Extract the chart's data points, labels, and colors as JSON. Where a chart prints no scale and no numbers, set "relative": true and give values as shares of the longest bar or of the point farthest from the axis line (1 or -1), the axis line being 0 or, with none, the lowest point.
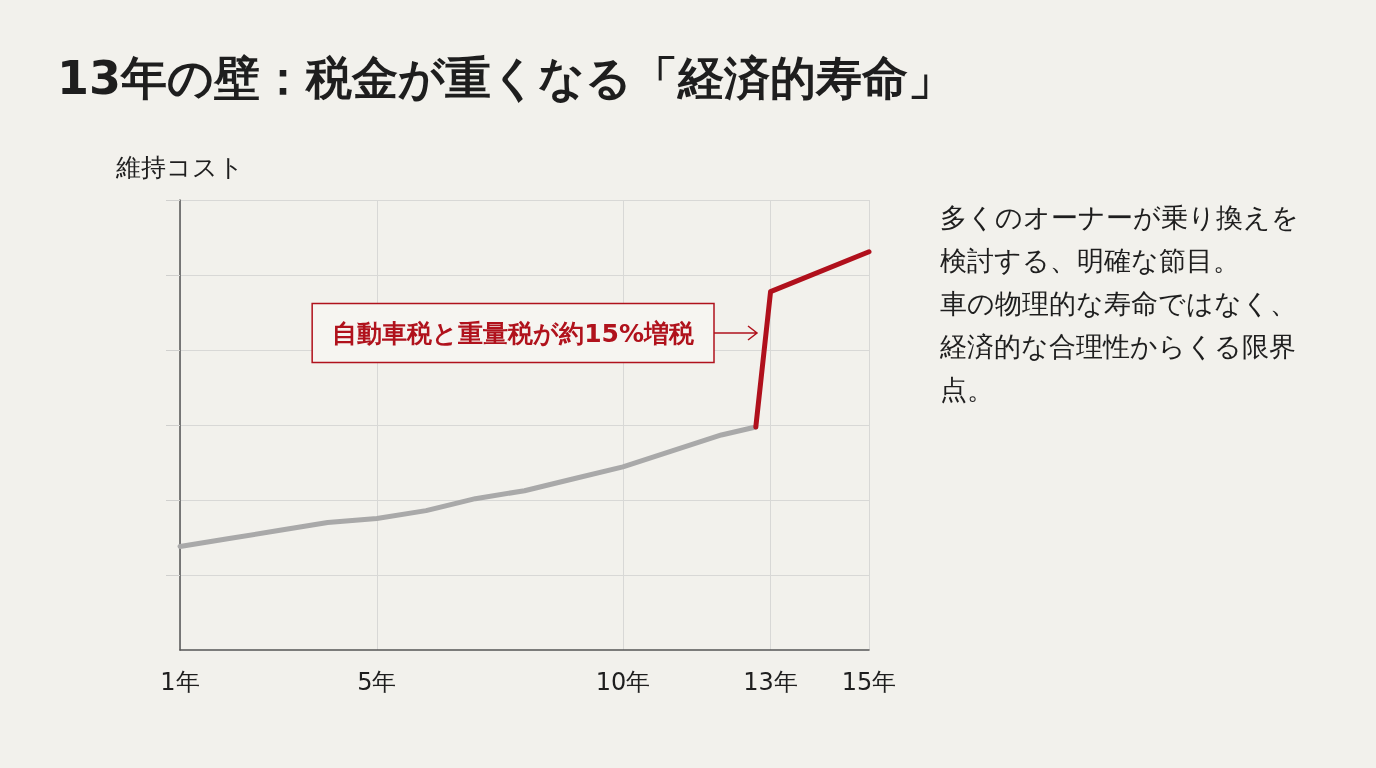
{
  "chart_data": {
    "type": "line",
    "title": "13年の壁：税金が重くなる「経済的寿命」",
    "ylabel": "維持コスト",
    "relative": true,
    "xlim": [
      1,
      15
    ],
    "xticks": [
      {
        "value": 1,
        "label": "1年"
      },
      {
        "value": 5,
        "label": "5年"
      },
      {
        "value": 10,
        "label": "10年"
      },
      {
        "value": 13,
        "label": "13年"
      },
      {
        "value": 15,
        "label": "15年"
      }
    ],
    "series": [
      {
        "color": "#a9a9a9",
        "x": [
          1,
          2,
          3,
          4,
          5,
          6,
          7,
          8,
          9,
          10,
          11,
          12,
          12.7
        ],
        "values": [
          0.26,
          0.28,
          0.3,
          0.32,
          0.33,
          0.35,
          0.38,
          0.4,
          0.43,
          0.46,
          0.5,
          0.54,
          0.56
        ]
      },
      {
        "color": "#b0101c",
        "x": [
          12.7,
          13,
          15
        ],
        "values": [
          0.56,
          0.9,
          1
        ]
      }
    ],
    "grid": true,
    "tick_labels": "x",
    "annotations": [
      "自動車税と重量税が約15%増税",
      "多くのオーナーが乗り換えを検討する、明確な節目。",
      "車の物理的な寿命ではなく、経済的な合理性からくる限界点。"
    ]
  }
}
